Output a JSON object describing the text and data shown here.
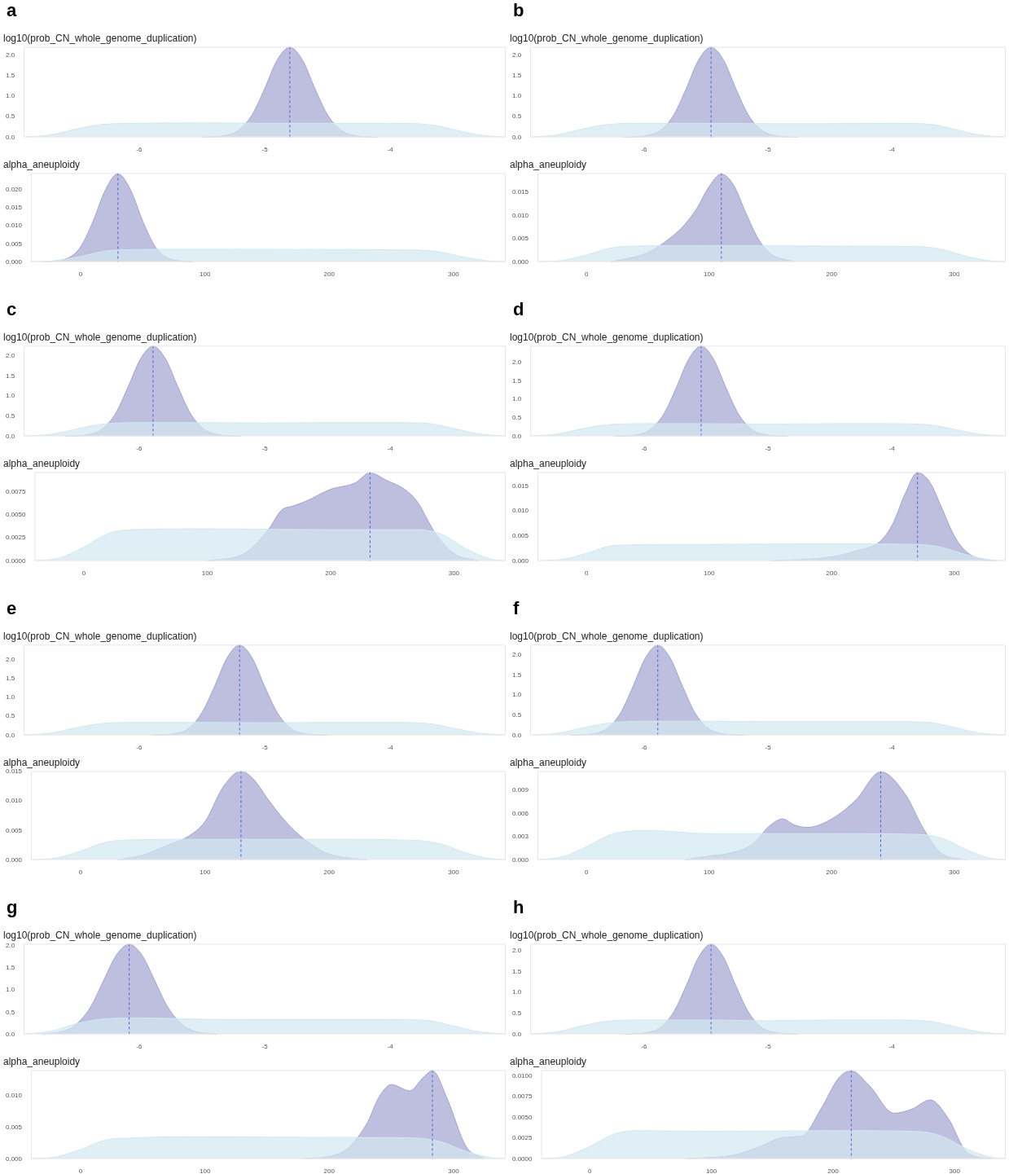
{
  "chart_data": [
    {
      "type": "area",
      "title": "log10(prob_CN_whole_genome_duplication)",
      "annotations": [
        "a"
      ],
      "xlim": [
        -6.92,
        -3.08
      ],
      "xticks": [
        -6,
        -5,
        -4
      ],
      "ylim": [
        0,
        2.21
      ],
      "yticks": [
        {
          "value": 0,
          "label": "0.0"
        },
        {
          "value": 0.5,
          "label": "0.5"
        },
        {
          "value": 1,
          "label": "1.0"
        },
        {
          "value": 1.5,
          "label": "1.5"
        },
        {
          "value": 2,
          "label": "2.0"
        }
      ],
      "ref_lines": [
        {
          "axis": "x",
          "value": -4.8,
          "color": "#4a5de0",
          "line_style": "dashed"
        }
      ],
      "series": [
        {
          "color": "#d3e7f1",
          "x": [
            -6.92,
            -6.7,
            -6.5,
            -6.3,
            -6.0,
            -5.5,
            -5.0,
            -4.5,
            -4.0,
            -3.7,
            -3.5,
            -3.3,
            -3.08
          ],
          "values": [
            0,
            0.06,
            0.2,
            0.31,
            0.34,
            0.35,
            0.34,
            0.34,
            0.34,
            0.31,
            0.19,
            0.06,
            0
          ]
        },
        {
          "color": "#a3a3d0",
          "x": [
            -5.5,
            -5.3,
            -5.2,
            -5.1,
            -5.0,
            -4.9,
            -4.8,
            -4.7,
            -4.6,
            -4.5,
            -4.4,
            -4.3,
            -4.1
          ],
          "values": [
            0,
            0.05,
            0.19,
            0.55,
            1.19,
            1.89,
            2.2,
            1.89,
            1.19,
            0.55,
            0.19,
            0.05,
            0
          ]
        }
      ]
    },
    {
      "type": "area",
      "title": "alpha_aneuploidy",
      "xlim": [
        -40,
        342
      ],
      "xticks": [
        0,
        100,
        200,
        300
      ],
      "ylim": [
        0,
        0.0247
      ],
      "yticks": [
        {
          "value": 0,
          "label": "0.000"
        },
        {
          "value": 0.005,
          "label": "0.005"
        },
        {
          "value": 0.01,
          "label": "0.010"
        },
        {
          "value": 0.015,
          "label": "0.015"
        },
        {
          "value": 0.02,
          "label": "0.020"
        }
      ],
      "ref_lines": [
        {
          "axis": "x",
          "value": 30,
          "color": "#4a5de0",
          "line_style": "dashed"
        }
      ],
      "series": [
        {
          "color": "#d3e7f1",
          "x": [
            -40,
            -20,
            0,
            20,
            40,
            100,
            200,
            270,
            290,
            310,
            330,
            342
          ],
          "values": [
            0,
            0.0003,
            0.0015,
            0.003,
            0.0034,
            0.0035,
            0.0034,
            0.0033,
            0.0027,
            0.0012,
            0.0002,
            0
          ]
        },
        {
          "color": "#a3a3d0",
          "x": [
            -30,
            -10,
            0,
            10,
            20,
            30,
            40,
            50,
            60,
            70,
            90
          ],
          "values": [
            0,
            0.0011,
            0.0042,
            0.0113,
            0.0201,
            0.0245,
            0.0201,
            0.0113,
            0.0042,
            0.0011,
            0
          ]
        }
      ]
    },
    {
      "type": "area",
      "title": "log10(prob_CN_whole_genome_duplication)",
      "annotations": [
        "b"
      ],
      "xlim": [
        -6.92,
        -3.08
      ],
      "xticks": [
        -6,
        -5,
        -4
      ],
      "ylim": [
        0,
        2.21
      ],
      "yticks": [
        {
          "value": 0,
          "label": "0.0"
        },
        {
          "value": 0.5,
          "label": "0.5"
        },
        {
          "value": 1,
          "label": "1.0"
        },
        {
          "value": 1.5,
          "label": "1.5"
        },
        {
          "value": 2,
          "label": "2.0"
        }
      ],
      "ref_lines": [
        {
          "axis": "x",
          "value": -5.46,
          "color": "#4a5de0",
          "line_style": "dashed"
        }
      ],
      "series": [
        {
          "color": "#d3e7f1",
          "x": [
            -6.92,
            -6.7,
            -6.5,
            -6.3,
            -6.0,
            -5.5,
            -5.0,
            -4.5,
            -4.0,
            -3.7,
            -3.5,
            -3.3,
            -3.08
          ],
          "values": [
            0,
            0.06,
            0.2,
            0.31,
            0.34,
            0.34,
            0.33,
            0.33,
            0.34,
            0.32,
            0.2,
            0.06,
            0
          ]
        },
        {
          "color": "#a3a3d0",
          "x": [
            -6.16,
            -5.96,
            -5.86,
            -5.76,
            -5.66,
            -5.56,
            -5.46,
            -5.36,
            -5.26,
            -5.16,
            -5.06,
            -4.96,
            -4.76
          ],
          "values": [
            0,
            0.05,
            0.19,
            0.55,
            1.19,
            1.89,
            2.2,
            1.89,
            1.19,
            0.55,
            0.19,
            0.05,
            0
          ]
        }
      ]
    },
    {
      "type": "area",
      "title": "alpha_aneuploidy",
      "xlim": [
        -40,
        342
      ],
      "xticks": [
        0,
        100,
        200,
        300
      ],
      "ylim": [
        0,
        0.0191
      ],
      "yticks": [
        {
          "value": 0,
          "label": "0.000"
        },
        {
          "value": 0.005,
          "label": "0.005"
        },
        {
          "value": 0.01,
          "label": "0.010"
        },
        {
          "value": 0.015,
          "label": "0.015"
        }
      ],
      "ref_lines": [
        {
          "axis": "x",
          "value": 110,
          "color": "#4a5de0",
          "line_style": "dashed"
        }
      ],
      "series": [
        {
          "color": "#d3e7f1",
          "x": [
            -40,
            -20,
            0,
            20,
            40,
            100,
            200,
            270,
            290,
            310,
            330,
            342
          ],
          "values": [
            0,
            0.0003,
            0.0015,
            0.003,
            0.0034,
            0.0035,
            0.0034,
            0.0033,
            0.0027,
            0.0012,
            0.0002,
            0
          ]
        },
        {
          "color": "#a3a3d0",
          "x": [
            20,
            50,
            70,
            80,
            90,
            100,
            110,
            120,
            130,
            140,
            150,
            170
          ],
          "values": [
            0,
            0.002,
            0.0055,
            0.008,
            0.0115,
            0.0162,
            0.0189,
            0.0165,
            0.0105,
            0.005,
            0.0018,
            0
          ]
        }
      ]
    },
    {
      "type": "area",
      "title": "log10(prob_CN_whole_genome_duplication)",
      "annotations": [
        "c"
      ],
      "xlim": [
        -6.92,
        -3.08
      ],
      "xticks": [
        -6,
        -5,
        -4
      ],
      "ylim": [
        0,
        2.26
      ],
      "yticks": [
        {
          "value": 0,
          "label": "0.0"
        },
        {
          "value": 0.5,
          "label": "0.5"
        },
        {
          "value": 1,
          "label": "1.0"
        },
        {
          "value": 1.5,
          "label": "1.5"
        },
        {
          "value": 2,
          "label": "2.0"
        }
      ],
      "ref_lines": [
        {
          "axis": "x",
          "value": -5.89,
          "color": "#4a5de0",
          "line_style": "dashed"
        }
      ],
      "series": [
        {
          "color": "#d3e7f1",
          "x": [
            -6.92,
            -6.7,
            -6.5,
            -6.3,
            -6.0,
            -5.5,
            -5.0,
            -4.5,
            -4.0,
            -3.7,
            -3.5,
            -3.3,
            -3.08
          ],
          "values": [
            0,
            0.05,
            0.18,
            0.3,
            0.34,
            0.34,
            0.33,
            0.34,
            0.34,
            0.32,
            0.2,
            0.06,
            0
          ]
        },
        {
          "color": "#a3a3d0",
          "x": [
            -6.59,
            -6.39,
            -6.29,
            -6.19,
            -6.09,
            -5.99,
            -5.89,
            -5.79,
            -5.69,
            -5.59,
            -5.49,
            -5.39,
            -5.19
          ],
          "values": [
            0,
            0.05,
            0.19,
            0.56,
            1.22,
            1.93,
            2.25,
            1.93,
            1.22,
            0.56,
            0.19,
            0.05,
            0
          ]
        }
      ]
    },
    {
      "type": "area",
      "title": "alpha_aneuploidy",
      "xlim": [
        -40,
        342
      ],
      "xticks": [
        0,
        100,
        200,
        300
      ],
      "ylim": [
        0,
        0.00968
      ],
      "yticks": [
        {
          "value": 0,
          "label": "0.0000"
        },
        {
          "value": 0.0025,
          "label": "0.0025"
        },
        {
          "value": 0.005,
          "label": "0.0050"
        },
        {
          "value": 0.0075,
          "label": "0.0075"
        }
      ],
      "ref_lines": [
        {
          "axis": "x",
          "value": 232,
          "color": "#4a5de0",
          "line_style": "dashed"
        }
      ],
      "series": [
        {
          "color": "#d3e7f1",
          "x": [
            -40,
            -20,
            0,
            20,
            40,
            100,
            200,
            270,
            290,
            310,
            330,
            342
          ],
          "values": [
            0,
            0.0003,
            0.0015,
            0.003,
            0.0034,
            0.0035,
            0.0034,
            0.0034,
            0.0029,
            0.0013,
            0.0002,
            0
          ]
        },
        {
          "color": "#a3a3d0",
          "x": [
            100,
            130,
            150,
            160,
            170,
            180,
            200,
            220,
            232,
            245,
            260,
            270,
            285,
            300,
            320
          ],
          "values": [
            0,
            0.0008,
            0.0035,
            0.0055,
            0.006,
            0.0065,
            0.0078,
            0.0085,
            0.0096,
            0.0088,
            0.0078,
            0.0065,
            0.003,
            0.0008,
            0
          ]
        }
      ]
    },
    {
      "type": "area",
      "title": "log10(prob_CN_whole_genome_duplication)",
      "annotations": [
        "d"
      ],
      "xlim": [
        -6.92,
        -3.08
      ],
      "xticks": [
        -6,
        -5,
        -4
      ],
      "ylim": [
        0,
        2.45
      ],
      "yticks": [
        {
          "value": 0,
          "label": "0.0"
        },
        {
          "value": 0.5,
          "label": "0.5"
        },
        {
          "value": 1,
          "label": "1.0"
        },
        {
          "value": 1.5,
          "label": "1.5"
        },
        {
          "value": 2,
          "label": "2.0"
        }
      ],
      "ref_lines": [
        {
          "axis": "x",
          "value": -5.54,
          "color": "#4a5de0",
          "line_style": "dashed"
        }
      ],
      "series": [
        {
          "color": "#d3e7f1",
          "x": [
            -6.92,
            -6.7,
            -6.5,
            -6.3,
            -6.0,
            -5.5,
            -5.0,
            -4.5,
            -4.0,
            -3.7,
            -3.5,
            -3.3,
            -3.08
          ],
          "values": [
            0,
            0.06,
            0.2,
            0.31,
            0.34,
            0.34,
            0.33,
            0.34,
            0.34,
            0.31,
            0.19,
            0.06,
            0
          ]
        },
        {
          "color": "#a3a3d0",
          "x": [
            -6.24,
            -6.04,
            -5.94,
            -5.84,
            -5.74,
            -5.64,
            -5.54,
            -5.44,
            -5.34,
            -5.24,
            -5.14,
            -5.04,
            -4.84
          ],
          "values": [
            0,
            0.05,
            0.21,
            0.61,
            1.32,
            2.09,
            2.44,
            2.09,
            1.32,
            0.61,
            0.21,
            0.05,
            0
          ]
        }
      ]
    },
    {
      "type": "area",
      "title": "alpha_aneuploidy",
      "xlim": [
        -40,
        342
      ],
      "xticks": [
        0,
        100,
        200,
        300
      ],
      "ylim": [
        0,
        0.0178
      ],
      "yticks": [
        {
          "value": 0,
          "label": "0.000"
        },
        {
          "value": 0.005,
          "label": "0.005"
        },
        {
          "value": 0.01,
          "label": "0.010"
        },
        {
          "value": 0.015,
          "label": "0.015"
        }
      ],
      "ref_lines": [
        {
          "axis": "x",
          "value": 270,
          "color": "#4a5de0",
          "line_style": "dashed"
        }
      ],
      "series": [
        {
          "color": "#d3e7f1",
          "x": [
            -40,
            -20,
            0,
            20,
            40,
            100,
            200,
            270,
            290,
            310,
            330,
            342
          ],
          "values": [
            0,
            0.0003,
            0.0015,
            0.003,
            0.0032,
            0.0033,
            0.0034,
            0.0033,
            0.0027,
            0.0012,
            0.0002,
            0
          ]
        },
        {
          "color": "#a3a3d0",
          "x": [
            150,
            200,
            220,
            240,
            250,
            260,
            270,
            280,
            290,
            300,
            310,
            320,
            335
          ],
          "values": [
            0,
            0.0008,
            0.002,
            0.004,
            0.0075,
            0.0135,
            0.0177,
            0.0158,
            0.0105,
            0.005,
            0.0018,
            0.0005,
            0
          ]
        }
      ]
    },
    {
      "type": "area",
      "title": "log10(prob_CN_whole_genome_duplication)",
      "annotations": [
        "e"
      ],
      "xlim": [
        -6.92,
        -3.08
      ],
      "xticks": [
        -6,
        -5,
        -4
      ],
      "ylim": [
        0,
        2.4
      ],
      "yticks": [
        {
          "value": 0,
          "label": "0.0"
        },
        {
          "value": 0.5,
          "label": "0.5"
        },
        {
          "value": 1,
          "label": "1.0"
        },
        {
          "value": 1.5,
          "label": "1.5"
        },
        {
          "value": 2,
          "label": "2.0"
        }
      ],
      "ref_lines": [
        {
          "axis": "x",
          "value": -5.2,
          "color": "#4a5de0",
          "line_style": "dashed"
        }
      ],
      "series": [
        {
          "color": "#d3e7f1",
          "x": [
            -6.92,
            -6.7,
            -6.5,
            -6.3,
            -6.0,
            -5.5,
            -5.0,
            -4.5,
            -4.0,
            -3.7,
            -3.5,
            -3.3,
            -3.08
          ],
          "values": [
            0,
            0.06,
            0.2,
            0.31,
            0.34,
            0.34,
            0.33,
            0.34,
            0.34,
            0.31,
            0.19,
            0.06,
            0
          ]
        },
        {
          "color": "#a3a3d0",
          "x": [
            -5.9,
            -5.7,
            -5.6,
            -5.5,
            -5.4,
            -5.3,
            -5.2,
            -5.1,
            -5.0,
            -4.9,
            -4.8,
            -4.7,
            -4.5
          ],
          "values": [
            0,
            0.05,
            0.2,
            0.6,
            1.29,
            2.05,
            2.39,
            2.05,
            1.29,
            0.6,
            0.2,
            0.05,
            0
          ]
        }
      ]
    },
    {
      "type": "area",
      "title": "alpha_aneuploidy",
      "xlim": [
        -40,
        342
      ],
      "xticks": [
        0,
        100,
        200,
        300
      ],
      "ylim": [
        0,
        0.0151
      ],
      "yticks": [
        {
          "value": 0,
          "label": "0.000"
        },
        {
          "value": 0.005,
          "label": "0.005"
        },
        {
          "value": 0.01,
          "label": "0.010"
        },
        {
          "value": 0.015,
          "label": "0.015"
        }
      ],
      "ref_lines": [
        {
          "axis": "x",
          "value": 129,
          "color": "#4a5de0",
          "line_style": "dashed"
        }
      ],
      "series": [
        {
          "color": "#d3e7f1",
          "x": [
            -40,
            -20,
            0,
            20,
            40,
            100,
            200,
            270,
            290,
            310,
            330,
            342
          ],
          "values": [
            0,
            0.0003,
            0.0015,
            0.003,
            0.0034,
            0.0035,
            0.0035,
            0.0033,
            0.0027,
            0.0012,
            0.0002,
            0
          ]
        },
        {
          "color": "#a3a3d0",
          "x": [
            30,
            50,
            70,
            85,
            100,
            115,
            129,
            140,
            150,
            165,
            180,
            200,
            230
          ],
          "values": [
            0,
            0.0008,
            0.0025,
            0.0038,
            0.0065,
            0.0125,
            0.0151,
            0.0135,
            0.0105,
            0.0065,
            0.0035,
            0.001,
            0
          ]
        }
      ]
    },
    {
      "type": "area",
      "title": "log10(prob_CN_whole_genome_duplication)",
      "annotations": [
        "f"
      ],
      "xlim": [
        -6.92,
        -3.08
      ],
      "xticks": [
        -6,
        -5,
        -4
      ],
      "ylim": [
        0,
        2.26
      ],
      "yticks": [
        {
          "value": 0,
          "label": "0.0"
        },
        {
          "value": 0.5,
          "label": "0.5"
        },
        {
          "value": 1,
          "label": "1.0"
        },
        {
          "value": 1.5,
          "label": "1.5"
        },
        {
          "value": 2,
          "label": "2.0"
        }
      ],
      "ref_lines": [
        {
          "axis": "x",
          "value": -5.89,
          "color": "#4a5de0",
          "line_style": "dashed"
        }
      ],
      "series": [
        {
          "color": "#d3e7f1",
          "x": [
            -6.92,
            -6.7,
            -6.5,
            -6.3,
            -6.0,
            -5.5,
            -5.0,
            -4.5,
            -4.0,
            -3.7,
            -3.5,
            -3.3,
            -3.08
          ],
          "values": [
            0,
            0.05,
            0.18,
            0.3,
            0.35,
            0.35,
            0.34,
            0.34,
            0.34,
            0.32,
            0.2,
            0.06,
            0
          ]
        },
        {
          "color": "#a3a3d0",
          "x": [
            -6.59,
            -6.39,
            -6.29,
            -6.19,
            -6.09,
            -5.99,
            -5.89,
            -5.79,
            -5.69,
            -5.59,
            -5.49,
            -5.39,
            -5.19
          ],
          "values": [
            0,
            0.05,
            0.19,
            0.56,
            1.22,
            1.93,
            2.25,
            1.93,
            1.22,
            0.56,
            0.19,
            0.05,
            0
          ]
        }
      ]
    },
    {
      "type": "area",
      "title": "alpha_aneuploidy",
      "xlim": [
        -40,
        342
      ],
      "xticks": [
        0,
        100,
        200,
        300
      ],
      "ylim": [
        0,
        0.0115
      ],
      "yticks": [
        {
          "value": 0,
          "label": "0.000"
        },
        {
          "value": 0.003,
          "label": "0.003"
        },
        {
          "value": 0.006,
          "label": "0.006"
        },
        {
          "value": 0.009,
          "label": "0.009"
        }
      ],
      "ref_lines": [
        {
          "axis": "x",
          "value": 240,
          "color": "#4a5de0",
          "line_style": "dashed"
        }
      ],
      "series": [
        {
          "color": "#d3e7f1",
          "x": [
            -40,
            -20,
            0,
            20,
            50,
            100,
            200,
            270,
            290,
            310,
            330,
            342
          ],
          "values": [
            0,
            0.0004,
            0.0017,
            0.0033,
            0.0038,
            0.0034,
            0.0034,
            0.0033,
            0.0028,
            0.0013,
            0.0002,
            0
          ]
        },
        {
          "color": "#a3a3d0",
          "x": [
            80,
            100,
            115,
            135,
            150,
            160,
            170,
            180,
            200,
            220,
            240,
            260,
            275,
            290,
            310
          ],
          "values": [
            0,
            0.0005,
            0.0008,
            0.002,
            0.0045,
            0.0053,
            0.0045,
            0.0042,
            0.0053,
            0.0078,
            0.0114,
            0.0085,
            0.004,
            0.0008,
            0
          ]
        }
      ]
    },
    {
      "type": "area",
      "title": "log10(prob_CN_whole_genome_duplication)",
      "annotations": [
        "g"
      ],
      "xlim": [
        -6.92,
        -3.08
      ],
      "xticks": [
        -6,
        -5,
        -4
      ],
      "ylim": [
        0,
        2.05
      ],
      "yticks": [
        {
          "value": 0,
          "label": "0.0"
        },
        {
          "value": 0.5,
          "label": "0.5"
        },
        {
          "value": 1,
          "label": "1.0"
        },
        {
          "value": 1.5,
          "label": "1.5"
        },
        {
          "value": 2,
          "label": "2.0"
        }
      ],
      "ref_lines": [
        {
          "axis": "x",
          "value": -6.08,
          "color": "#4a5de0",
          "line_style": "dashed"
        }
      ],
      "series": [
        {
          "color": "#d3e7f1",
          "x": [
            -6.92,
            -6.7,
            -6.5,
            -6.3,
            -6.0,
            -5.5,
            -5.0,
            -4.5,
            -4.0,
            -3.7,
            -3.5,
            -3.3,
            -3.08
          ],
          "values": [
            0,
            0.07,
            0.24,
            0.34,
            0.37,
            0.34,
            0.33,
            0.33,
            0.33,
            0.31,
            0.19,
            0.06,
            0
          ]
        },
        {
          "color": "#a3a3d0",
          "x": [
            -6.78,
            -6.58,
            -6.48,
            -6.38,
            -6.28,
            -6.18,
            -6.08,
            -5.98,
            -5.88,
            -5.78,
            -5.68,
            -5.58,
            -5.38
          ],
          "values": [
            0,
            0.09,
            0.28,
            0.65,
            1.24,
            1.8,
            2.04,
            1.8,
            1.24,
            0.65,
            0.28,
            0.09,
            0
          ]
        }
      ]
    },
    {
      "type": "area",
      "title": "alpha_aneuploidy",
      "xlim": [
        -40,
        342
      ],
      "xticks": [
        0,
        100,
        200,
        300
      ],
      "ylim": [
        0,
        0.0141
      ],
      "yticks": [
        {
          "value": 0,
          "label": "0.000"
        },
        {
          "value": 0.005,
          "label": "0.005"
        },
        {
          "value": 0.01,
          "label": "0.010"
        }
      ],
      "ref_lines": [
        {
          "axis": "x",
          "value": 283,
          "color": "#4a5de0",
          "line_style": "dashed"
        }
      ],
      "series": [
        {
          "color": "#d3e7f1",
          "x": [
            -40,
            -20,
            0,
            20,
            40,
            85,
            200,
            270,
            290,
            310,
            330,
            342
          ],
          "values": [
            0,
            0.0003,
            0.0015,
            0.003,
            0.0033,
            0.0035,
            0.0034,
            0.0033,
            0.0027,
            0.0012,
            0.0002,
            0
          ]
        },
        {
          "color": "#a3a3d0",
          "x": [
            180,
            210,
            230,
            240,
            250,
            265,
            275,
            283,
            295,
            310,
            325
          ],
          "values": [
            0,
            0.001,
            0.0055,
            0.0098,
            0.0118,
            0.0108,
            0.0128,
            0.014,
            0.0095,
            0.002,
            0
          ]
        }
      ]
    },
    {
      "type": "area",
      "title": "log10(prob_CN_whole_genome_duplication)",
      "annotations": [
        "h"
      ],
      "xlim": [
        -6.92,
        -3.08
      ],
      "xticks": [
        -6,
        -5,
        -4
      ],
      "ylim": [
        0,
        2.16
      ],
      "yticks": [
        {
          "value": 0,
          "label": "0.0"
        },
        {
          "value": 0.5,
          "label": "0.5"
        },
        {
          "value": 1,
          "label": "1.0"
        },
        {
          "value": 1.5,
          "label": "1.5"
        },
        {
          "value": 2,
          "label": "2.0"
        }
      ],
      "ref_lines": [
        {
          "axis": "x",
          "value": -5.46,
          "color": "#4a5de0",
          "line_style": "dashed"
        }
      ],
      "series": [
        {
          "color": "#d3e7f1",
          "x": [
            -6.92,
            -6.7,
            -6.5,
            -6.3,
            -6.0,
            -5.5,
            -5.0,
            -4.5,
            -4.0,
            -3.7,
            -3.5,
            -3.3,
            -3.08
          ],
          "values": [
            0,
            0.06,
            0.2,
            0.31,
            0.34,
            0.34,
            0.32,
            0.34,
            0.34,
            0.31,
            0.19,
            0.06,
            0
          ]
        },
        {
          "color": "#a3a3d0",
          "x": [
            -6.16,
            -5.96,
            -5.86,
            -5.76,
            -5.66,
            -5.56,
            -5.46,
            -5.36,
            -5.26,
            -5.16,
            -5.06,
            -4.96,
            -4.76
          ],
          "values": [
            0,
            0.05,
            0.18,
            0.54,
            1.16,
            1.84,
            2.15,
            1.84,
            1.16,
            0.54,
            0.18,
            0.05,
            0
          ]
        }
      ]
    },
    {
      "type": "area",
      "title": "alpha_aneuploidy",
      "xlim": [
        -40,
        342
      ],
      "xticks": [
        0,
        100,
        200,
        300
      ],
      "ylim": [
        0,
        0.0107
      ],
      "yticks": [
        {
          "value": 0,
          "label": "0.0000"
        },
        {
          "value": 0.0025,
          "label": "0.0025"
        },
        {
          "value": 0.005,
          "label": "0.0050"
        },
        {
          "value": 0.0075,
          "label": "0.0075"
        },
        {
          "value": 0.01,
          "label": "0.0100"
        }
      ],
      "ref_lines": [
        {
          "axis": "x",
          "value": 215,
          "color": "#4a5de0",
          "line_style": "dashed"
        }
      ],
      "series": [
        {
          "color": "#d3e7f1",
          "x": [
            -40,
            -20,
            0,
            20,
            40,
            100,
            200,
            270,
            290,
            310,
            330,
            342
          ],
          "values": [
            0,
            0.0003,
            0.0015,
            0.003,
            0.0034,
            0.0033,
            0.0034,
            0.0033,
            0.0027,
            0.0012,
            0.0002,
            0
          ]
        },
        {
          "color": "#a3a3d0",
          "x": [
            80,
            120,
            140,
            160,
            175,
            190,
            205,
            215,
            230,
            250,
            265,
            280,
            295,
            310,
            330
          ],
          "values": [
            0,
            0.0005,
            0.0015,
            0.0026,
            0.0028,
            0.006,
            0.0098,
            0.0106,
            0.0088,
            0.0055,
            0.006,
            0.0071,
            0.0048,
            0.0008,
            0
          ]
        }
      ]
    }
  ]
}
